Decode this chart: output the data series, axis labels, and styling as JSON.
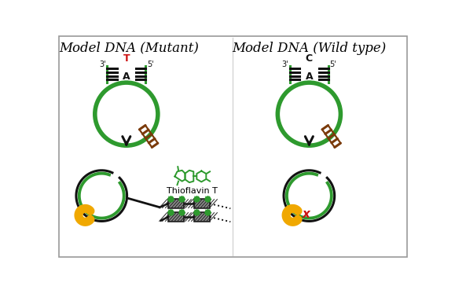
{
  "title_left": "Model DNA (Mutant)",
  "title_right": "Model DNA (Wild type)",
  "title_fontsize": 12,
  "bg_color": "#ffffff",
  "border_color": "#aaaaaa",
  "green_color": "#2e9a2e",
  "black_color": "#111111",
  "orange_color": "#f0a800",
  "red_color": "#cc1111",
  "brown_color": "#7a3a0a",
  "thioflavin_color": "#2e9a2e",
  "thioflavin_label": "Thioflavin T",
  "label_T": "T",
  "label_C": "C",
  "label_A": "A",
  "label_3p": "3'",
  "label_5p": "5'",
  "label_x": "x"
}
